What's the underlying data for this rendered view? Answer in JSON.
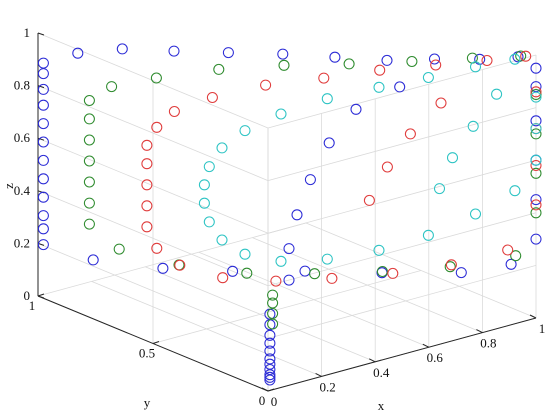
{
  "chart_data": {
    "type": "scatter3d",
    "title": "",
    "xlabel": "x",
    "ylabel": "y",
    "zlabel": "z",
    "xlim": [
      0,
      1
    ],
    "ylim": [
      0,
      1
    ],
    "zlim": [
      0,
      1
    ],
    "x_ticks": [
      "0",
      "0.2",
      "0.4",
      "0.6",
      "0.8",
      "1"
    ],
    "y_ticks": [
      "0",
      "0.5",
      "1"
    ],
    "z_ticks": [
      "0",
      "0.2",
      "0.4",
      "0.6",
      "0.8",
      "1"
    ],
    "grid": true,
    "marker": "circle",
    "series": [
      {
        "color": "#2b2bd6",
        "points": [
          [
            0.05,
            0.05,
            0.01
          ],
          [
            0.05,
            0.05,
            0.02
          ],
          [
            0.05,
            0.05,
            0.03
          ],
          [
            0.05,
            0.05,
            0.05
          ],
          [
            0.05,
            0.05,
            0.07
          ],
          [
            0.05,
            0.05,
            0.09
          ],
          [
            0.05,
            0.05,
            0.12
          ],
          [
            0.05,
            0.05,
            0.15
          ],
          [
            0.05,
            0.05,
            0.18
          ],
          [
            0.05,
            0.05,
            0.22
          ],
          [
            0.05,
            0.05,
            0.26
          ],
          [
            0.02,
            1.0,
            0.3
          ],
          [
            0.02,
            1.0,
            0.37
          ],
          [
            0.02,
            1.0,
            0.44
          ],
          [
            0.02,
            1.0,
            0.51
          ],
          [
            0.02,
            1.0,
            0.58
          ],
          [
            0.02,
            1.0,
            0.65
          ],
          [
            0.02,
            1.0,
            0.72
          ],
          [
            0.02,
            1.0,
            0.78
          ],
          [
            0.02,
            1.0,
            0.84
          ],
          [
            0.02,
            1.0,
            0.88
          ],
          [
            0.08,
            0.92,
            0.93
          ],
          [
            0.16,
            0.82,
            0.96
          ],
          [
            0.25,
            0.7,
            0.97
          ],
          [
            0.35,
            0.58,
            0.98
          ],
          [
            0.45,
            0.46,
            0.99
          ],
          [
            0.55,
            0.35,
            0.99
          ],
          [
            0.65,
            0.24,
            0.99
          ],
          [
            0.75,
            0.15,
            1.0
          ],
          [
            0.85,
            0.07,
            1.0
          ],
          [
            0.95,
            0.02,
            1.0
          ],
          [
            1.0,
            0.0,
            0.95
          ],
          [
            0.02,
            1.0,
            0.25
          ],
          [
            0.02,
            1.0,
            0.19
          ],
          [
            0.12,
            0.9,
            0.14
          ],
          [
            0.26,
            0.76,
            0.12
          ],
          [
            0.4,
            0.62,
            0.12
          ],
          [
            0.55,
            0.48,
            0.13
          ],
          [
            0.7,
            0.32,
            0.14
          ],
          [
            0.85,
            0.15,
            0.16
          ],
          [
            0.95,
            0.05,
            0.2
          ],
          [
            1.0,
            0.0,
            0.3
          ],
          [
            1.0,
            0.0,
            0.45
          ],
          [
            1.0,
            0.0,
            0.6
          ],
          [
            1.0,
            0.0,
            0.75
          ],
          [
            1.0,
            0.0,
            0.88
          ],
          [
            0.25,
            0.2,
            0.28
          ],
          [
            0.25,
            0.2,
            0.4
          ],
          [
            0.28,
            0.2,
            0.52
          ],
          [
            0.33,
            0.2,
            0.64
          ],
          [
            0.4,
            0.2,
            0.76
          ],
          [
            0.5,
            0.2,
            0.86
          ],
          [
            0.62,
            0.15,
            0.93
          ]
        ]
      },
      {
        "color": "#2e8b2e",
        "points": [
          [
            0.06,
            0.05,
            0.22
          ],
          [
            0.06,
            0.05,
            0.26
          ],
          [
            0.06,
            0.05,
            0.3
          ],
          [
            0.06,
            0.05,
            0.33
          ],
          [
            0.02,
            0.8,
            0.34
          ],
          [
            0.02,
            0.8,
            0.42
          ],
          [
            0.02,
            0.8,
            0.5
          ],
          [
            0.02,
            0.8,
            0.58
          ],
          [
            0.02,
            0.8,
            0.66
          ],
          [
            0.02,
            0.8,
            0.74
          ],
          [
            0.02,
            0.8,
            0.81
          ],
          [
            0.06,
            0.75,
            0.87
          ],
          [
            0.15,
            0.66,
            0.91
          ],
          [
            0.28,
            0.54,
            0.95
          ],
          [
            0.42,
            0.42,
            0.97
          ],
          [
            0.56,
            0.3,
            0.98
          ],
          [
            0.7,
            0.19,
            0.99
          ],
          [
            0.84,
            0.09,
            1.0
          ],
          [
            0.96,
            0.02,
            1.0
          ],
          [
            0.08,
            0.74,
            0.25
          ],
          [
            0.2,
            0.62,
            0.2
          ],
          [
            0.35,
            0.5,
            0.17
          ],
          [
            0.5,
            0.38,
            0.17
          ],
          [
            0.65,
            0.26,
            0.18
          ],
          [
            0.8,
            0.14,
            0.2
          ],
          [
            0.95,
            0.03,
            0.24
          ],
          [
            1.0,
            0.0,
            0.4
          ],
          [
            1.0,
            0.0,
            0.55
          ],
          [
            1.0,
            0.0,
            0.7
          ],
          [
            1.0,
            0.0,
            0.85
          ]
        ]
      },
      {
        "color": "#e03c3c",
        "points": [
          [
            0.02,
            0.55,
            0.5
          ],
          [
            0.02,
            0.55,
            0.58
          ],
          [
            0.02,
            0.55,
            0.66
          ],
          [
            0.02,
            0.55,
            0.73
          ],
          [
            0.04,
            0.53,
            0.8
          ],
          [
            0.08,
            0.5,
            0.86
          ],
          [
            0.17,
            0.44,
            0.91
          ],
          [
            0.3,
            0.36,
            0.95
          ],
          [
            0.44,
            0.27,
            0.97
          ],
          [
            0.58,
            0.19,
            0.99
          ],
          [
            0.72,
            0.11,
            1.0
          ],
          [
            0.86,
            0.05,
            1.0
          ],
          [
            0.97,
            0.01,
            1.0
          ],
          [
            0.02,
            0.55,
            0.42
          ],
          [
            0.04,
            0.53,
            0.34
          ],
          [
            0.1,
            0.5,
            0.27
          ],
          [
            0.2,
            0.43,
            0.22
          ],
          [
            0.33,
            0.35,
            0.2
          ],
          [
            0.47,
            0.27,
            0.2
          ],
          [
            0.62,
            0.18,
            0.21
          ],
          [
            0.77,
            0.1,
            0.23
          ],
          [
            0.92,
            0.03,
            0.27
          ],
          [
            1.0,
            0.0,
            0.43
          ],
          [
            1.0,
            0.0,
            0.58
          ],
          [
            1.0,
            0.0,
            0.72
          ],
          [
            1.0,
            0.0,
            0.86
          ],
          [
            0.55,
            0.2,
            0.5
          ],
          [
            0.6,
            0.18,
            0.62
          ],
          [
            0.66,
            0.15,
            0.74
          ],
          [
            0.74,
            0.11,
            0.85
          ]
        ]
      },
      {
        "color": "#2ec4c4",
        "points": [
          [
            0.02,
            0.3,
            0.6
          ],
          [
            0.02,
            0.3,
            0.67
          ],
          [
            0.03,
            0.29,
            0.74
          ],
          [
            0.06,
            0.27,
            0.81
          ],
          [
            0.12,
            0.24,
            0.87
          ],
          [
            0.22,
            0.2,
            0.92
          ],
          [
            0.35,
            0.15,
            0.96
          ],
          [
            0.5,
            0.1,
            0.98
          ],
          [
            0.65,
            0.06,
            0.99
          ],
          [
            0.8,
            0.03,
            1.0
          ],
          [
            0.93,
            0.01,
            1.0
          ],
          [
            0.03,
            0.29,
            0.53
          ],
          [
            0.06,
            0.27,
            0.46
          ],
          [
            0.12,
            0.24,
            0.4
          ],
          [
            0.22,
            0.2,
            0.36
          ],
          [
            0.35,
            0.15,
            0.35
          ],
          [
            0.5,
            0.1,
            0.36
          ],
          [
            0.65,
            0.06,
            0.39
          ],
          [
            0.8,
            0.03,
            0.44
          ],
          [
            0.93,
            0.01,
            0.5
          ],
          [
            1.0,
            0.0,
            0.6
          ],
          [
            1.0,
            0.0,
            0.72
          ],
          [
            1.0,
            0.0,
            0.84
          ],
          [
            0.7,
            0.07,
            0.55
          ],
          [
            0.74,
            0.06,
            0.66
          ],
          [
            0.8,
            0.04,
            0.77
          ],
          [
            0.87,
            0.02,
            0.88
          ]
        ]
      }
    ]
  }
}
